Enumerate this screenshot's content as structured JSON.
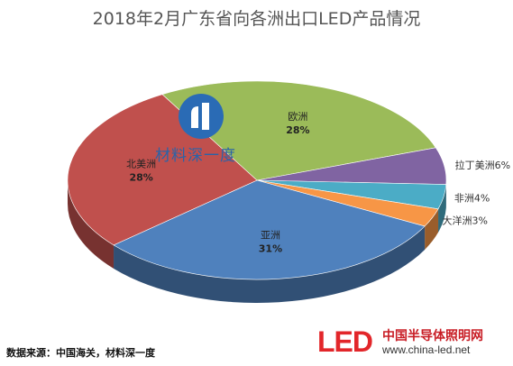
{
  "chart_data": {
    "type": "pie",
    "title": "2018年2月广东省向各洲出口LED产品情况",
    "slices": [
      {
        "label": "欧洲",
        "value": 28,
        "display": "28%",
        "color": "#9bbb59"
      },
      {
        "label": "拉丁美洲",
        "value": 6,
        "display": "拉丁美洲6%",
        "color": "#8064a2"
      },
      {
        "label": "非洲",
        "value": 4,
        "display": "非洲4%",
        "color": "#4bacc6"
      },
      {
        "label": "大洋洲",
        "value": 3,
        "display": "大洋洲3%",
        "color": "#f79646"
      },
      {
        "label": "亚洲",
        "value": 31,
        "display": "31%",
        "color": "#4f81bd"
      },
      {
        "label": "北美洲",
        "value": 28,
        "display": "28%",
        "color": "#c0504d"
      }
    ]
  },
  "source_note": "数据来源：中国海关，材料深一度",
  "watermark": "材料深一度",
  "logo": {
    "mark": "LED",
    "name_cn": "中国半导体照明网",
    "url": "www.china-led.net"
  }
}
